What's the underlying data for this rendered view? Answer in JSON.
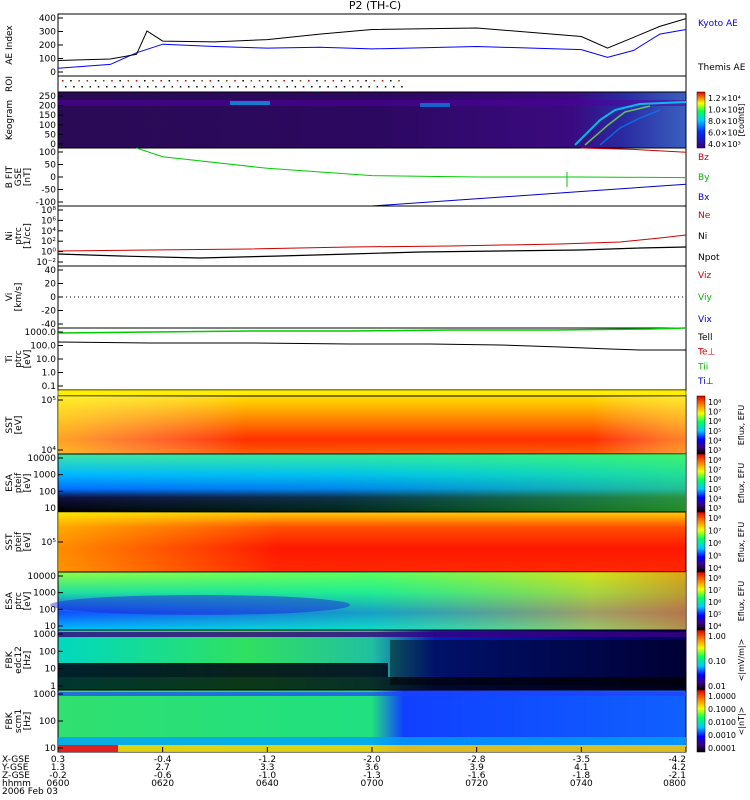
{
  "title": "P2 (TH-C)",
  "panels": [
    {
      "key": "ae",
      "ylabel": [
        "AE Index"
      ],
      "ticks": [
        "400",
        "300",
        "200",
        "100",
        "0"
      ],
      "legend": [
        {
          "text": "Kyoto AE",
          "color": "#0000ff"
        },
        {
          "text": "Themis AE",
          "color": "#000000"
        }
      ]
    },
    {
      "key": "roi",
      "ylabel": [
        "ROI"
      ],
      "ticks": [],
      "legend": []
    },
    {
      "key": "keogram",
      "ylabel": [
        "Keogram"
      ],
      "ticks": [
        "250",
        "200",
        "150",
        "100",
        "50",
        "0"
      ],
      "legend": []
    },
    {
      "key": "bfit",
      "ylabel": [
        "B FIT",
        "GSE",
        "[nT]"
      ],
      "ticks": [
        "100",
        "50",
        "0",
        "-50",
        "-100"
      ],
      "legend": [
        {
          "text": "Bz",
          "color": "#cc0000"
        },
        {
          "text": "By",
          "color": "#00bb00"
        },
        {
          "text": "Bx",
          "color": "#0000cc"
        }
      ]
    },
    {
      "key": "ni",
      "ylabel": [
        "Ni",
        "ptrc",
        "[1/cc]"
      ],
      "ticks": [
        "10⁸",
        "10⁶",
        "10⁴",
        "10²",
        "10⁰",
        "10⁻²"
      ],
      "legend": [
        {
          "text": "Ne",
          "color": "#cc0000"
        },
        {
          "text": "Ni",
          "color": "#000000"
        },
        {
          "text": "Npot",
          "color": "#000000"
        }
      ]
    },
    {
      "key": "vi",
      "ylabel": [
        "Vi",
        "[km/s]"
      ],
      "ticks": [
        "40",
        "20",
        "0",
        "-20",
        "-40"
      ],
      "legend": [
        {
          "text": "Viz",
          "color": "#cc0000"
        },
        {
          "text": "Viy",
          "color": "#00bb00"
        },
        {
          "text": "Vix",
          "color": "#0000cc"
        }
      ]
    },
    {
      "key": "ti",
      "ylabel": [
        "Ti",
        "ptrc",
        "[eV]"
      ],
      "ticks": [
        "1000.0",
        "100.0",
        "10.0",
        "1.0",
        "0.1"
      ],
      "legend": [
        {
          "text": "Tell",
          "color": "#000000"
        },
        {
          "text": "Te⊥",
          "color": "#cc0000"
        },
        {
          "text": "Tii",
          "color": "#00bb00"
        },
        {
          "text": "Ti⊥",
          "color": "#0000cc"
        }
      ]
    },
    {
      "key": "sst_e",
      "ylabel": [
        "SST",
        "[eV]"
      ],
      "ticks": [
        "10⁵",
        "10⁴"
      ],
      "legend": []
    },
    {
      "key": "esa_e",
      "ylabel": [
        "ESA",
        "pteif",
        "[eV]"
      ],
      "ticks": [
        "10000",
        "1000",
        "100",
        "10"
      ],
      "legend": []
    },
    {
      "key": "sst_i",
      "ylabel": [
        "SST",
        "pteif",
        "[eV]"
      ],
      "ticks": [
        "10⁵"
      ],
      "legend": []
    },
    {
      "key": "esa_i",
      "ylabel": [
        "ESA",
        "ptrc",
        "[eV]"
      ],
      "ticks": [
        "10000",
        "1000",
        "100",
        "10"
      ],
      "legend": []
    },
    {
      "key": "fbk1",
      "ylabel": [
        "FBK",
        "edc12",
        "[Hz]"
      ],
      "ticks": [
        "1000",
        "100",
        "10",
        "1"
      ],
      "legend": []
    },
    {
      "key": "fbk2",
      "ylabel": [
        "FBK",
        "scm1",
        "[Hz]"
      ],
      "ticks": [
        "1000",
        "100",
        "10"
      ],
      "legend": []
    }
  ],
  "colorbars": [
    {
      "panel": "keogram",
      "label": "[counts]",
      "ticks": [
        "1.2×10⁴",
        "1.0×10⁴",
        "8.0×10³",
        "6.0×10³",
        "4.0×10³"
      ]
    },
    {
      "panel": "sst_e",
      "label": "Eflux, EFU",
      "ticks": [
        "10⁸",
        "10⁷",
        "10⁶",
        "10⁵",
        "10⁴",
        "10³"
      ]
    },
    {
      "panel": "esa_e",
      "label": "Eflux, EFU",
      "ticks": [
        "10⁸",
        "10⁷",
        "10⁶",
        "10⁵",
        "10⁴",
        "10³"
      ]
    },
    {
      "panel": "sst_i",
      "label": "Eflux, EFU",
      "ticks": [
        "10⁸",
        "10⁷",
        "10⁶",
        "10⁵",
        "10⁴"
      ]
    },
    {
      "panel": "esa_i",
      "label": "Eflux, EFU",
      "ticks": [
        "10⁸",
        "10⁷",
        "10⁶",
        "10⁵",
        "10⁴"
      ]
    },
    {
      "panel": "fbk1",
      "label": "<|mV/m|>",
      "ticks": [
        "1.00",
        "0.10",
        "0.01"
      ]
    },
    {
      "panel": "fbk2",
      "label": "<|nT|>",
      "ticks": [
        "1.0000",
        "0.1000",
        "0.0100",
        "0.0010",
        "0.0001"
      ]
    }
  ],
  "xaxis": {
    "row_labels": [
      "X-GSE",
      "Y-GSE",
      "Z-GSE",
      "hhmm",
      "2006 Feb 03"
    ],
    "columns": [
      {
        "x": "0.3",
        "y": "1.3",
        "z": "-0.2",
        "t": "0600"
      },
      {
        "x": "-0.4",
        "y": "2.7",
        "z": "-0.6",
        "t": "0620"
      },
      {
        "x": "-1.2",
        "y": "3.3",
        "z": "-1.0",
        "t": "0640"
      },
      {
        "x": "-2.0",
        "y": "3.6",
        "z": "-1.3",
        "t": "0700"
      },
      {
        "x": "-2.8",
        "y": "3.9",
        "z": "-1.6",
        "t": "0720"
      },
      {
        "x": "-3.5",
        "y": "4.1",
        "z": "-1.8",
        "t": "0740"
      },
      {
        "x": "-4.2",
        "y": "4.2",
        "z": "-2.1",
        "t": "0800"
      }
    ]
  },
  "chart_data": {
    "type": "line",
    "title": "P2 (TH-C)",
    "xlabel": "hhmm",
    "x_ticks": [
      "0600",
      "0620",
      "0640",
      "0700",
      "0720",
      "0740",
      "0800"
    ],
    "series": [
      {
        "name": "Kyoto AE",
        "panel": "AE Index",
        "x": [
          "0600",
          "0610",
          "0615",
          "0620",
          "0630",
          "0640",
          "0650",
          "0700",
          "0720",
          "0740",
          "0745",
          "0750",
          "0755",
          "0800"
        ],
        "values": [
          50,
          75,
          150,
          205,
          190,
          180,
          185,
          175,
          190,
          170,
          120,
          165,
          270,
          300
        ]
      },
      {
        "name": "Themis AE",
        "panel": "AE Index",
        "x": [
          "0600",
          "0610",
          "0615",
          "0617",
          "0620",
          "0630",
          "0640",
          "0650",
          "0700",
          "0720",
          "0740",
          "0745",
          "0750",
          "0755",
          "0800"
        ],
        "values": [
          100,
          110,
          140,
          290,
          225,
          220,
          235,
          270,
          300,
          310,
          255,
          180,
          250,
          320,
          370
        ]
      },
      {
        "name": "By",
        "panel": "B FIT GSE [nT]",
        "x": [
          "0615",
          "0620",
          "0640",
          "0700",
          "0720",
          "0740",
          "0800"
        ],
        "values": [
          100,
          70,
          30,
          5,
          0,
          0,
          -2
        ]
      },
      {
        "name": "Bx",
        "panel": "B FIT GSE [nT]",
        "x": [
          "0700",
          "0720",
          "0740",
          "0800"
        ],
        "values": [
          -100,
          -75,
          -50,
          -25
        ]
      },
      {
        "name": "Bz",
        "panel": "B FIT GSE [nT]",
        "x": [
          "0740",
          "0750",
          "0800"
        ],
        "values": [
          100,
          95,
          85
        ]
      }
    ],
    "ylim": [
      0,
      400
    ]
  }
}
